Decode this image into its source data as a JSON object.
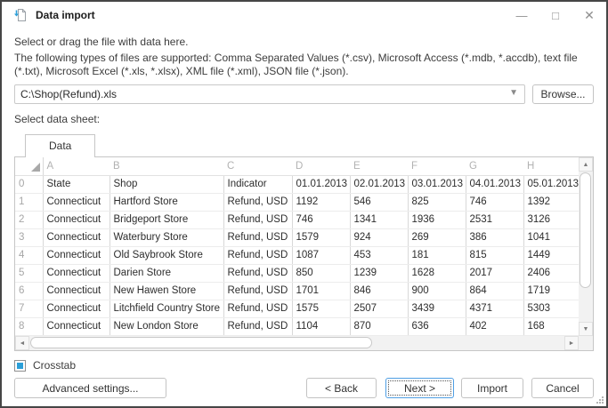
{
  "window": {
    "title": "Data import",
    "controls": {
      "minimize": "—",
      "maximize": "□",
      "close": "✕"
    }
  },
  "intro": {
    "line1": "Select or drag the file with data here.",
    "line2": "The following types of files are supported: Comma Separated Values (*.csv), Microsoft Access (*.mdb, *.accdb), text file (*.txt), Microsoft Excel (*.xls, *.xlsx), XML file (*.xml), JSON file (*.json)."
  },
  "file_picker": {
    "path_value": "C:\\Shop(Refund).xls",
    "browse_label": "Browse..."
  },
  "sheet_section": {
    "label": "Select data sheet:",
    "tabs": [
      {
        "label": "Data",
        "active": true
      }
    ]
  },
  "table": {
    "column_letters": [
      "A",
      "B",
      "C",
      "D",
      "E",
      "F",
      "G",
      "H"
    ],
    "rows": [
      {
        "num": "0",
        "cells": [
          "State",
          "Shop",
          "Indicator",
          "01.01.2013",
          "02.01.2013",
          "03.01.2013",
          "04.01.2013",
          "05.01.2013"
        ]
      },
      {
        "num": "1",
        "cells": [
          "Connecticut",
          "Hartford Store",
          "Refund, USD",
          "1192",
          "546",
          "825",
          "746",
          "1392"
        ]
      },
      {
        "num": "2",
        "cells": [
          "Connecticut",
          "Bridgeport Store",
          "Refund, USD",
          "746",
          "1341",
          "1936",
          "2531",
          "3126"
        ]
      },
      {
        "num": "3",
        "cells": [
          "Connecticut",
          "Waterbury Store",
          "Refund, USD",
          "1579",
          "924",
          "269",
          "386",
          "1041"
        ]
      },
      {
        "num": "4",
        "cells": [
          "Connecticut",
          "Old Saybrook Store",
          "Refund, USD",
          "1087",
          "453",
          "181",
          "815",
          "1449"
        ]
      },
      {
        "num": "5",
        "cells": [
          "Connecticut",
          "Darien Store",
          "Refund, USD",
          "850",
          "1239",
          "1628",
          "2017",
          "2406"
        ]
      },
      {
        "num": "6",
        "cells": [
          "Connecticut",
          "New Hawen Store",
          "Refund, USD",
          "1701",
          "846",
          "900",
          "864",
          "1719"
        ]
      },
      {
        "num": "7",
        "cells": [
          "Connecticut",
          "Litchfield Country Store",
          "Refund, USD",
          "1575",
          "2507",
          "3439",
          "4371",
          "5303"
        ]
      },
      {
        "num": "8",
        "cells": [
          "Connecticut",
          "New London Store",
          "Refund, USD",
          "1104",
          "870",
          "636",
          "402",
          "168"
        ]
      }
    ]
  },
  "crosstab": {
    "label": "Crosstab",
    "checked": true
  },
  "footer": {
    "advanced_label": "Advanced settings...",
    "back_label": "< Back",
    "next_label": "Next >",
    "import_label": "Import",
    "cancel_label": "Cancel"
  },
  "icons": {
    "dropdown_arrow": "▼",
    "scroll_up": "▲",
    "scroll_down": "▼",
    "scroll_left": "◄",
    "scroll_right": "►"
  },
  "colors": {
    "accent_blue": "#2b9fd8",
    "focus_border": "#4f9ee3"
  }
}
